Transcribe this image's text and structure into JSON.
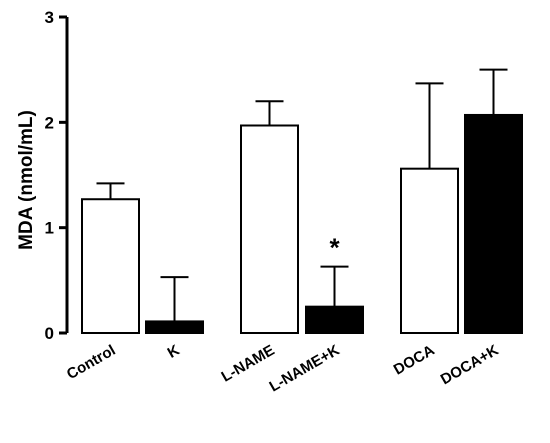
{
  "chart_data": {
    "type": "bar",
    "title": "",
    "xlabel": "",
    "ylabel": "MDA (nmol/mL)",
    "ylim": [
      0,
      3
    ],
    "yticks": [
      0,
      1,
      2,
      3
    ],
    "grid": false,
    "categories": [
      "Control",
      "K",
      "L-NAME",
      "L-NAME+K",
      "DOCA",
      "DOCA+K"
    ],
    "values": [
      1.27,
      0.11,
      1.97,
      0.25,
      1.56,
      2.07
    ],
    "error_upper": [
      0.15,
      0.42,
      0.23,
      0.38,
      0.81,
      0.43
    ],
    "fills": [
      "#ffffff",
      "#000000",
      "#ffffff",
      "#000000",
      "#ffffff",
      "#000000"
    ],
    "annotations": [
      {
        "category": "L-NAME+K",
        "text": "*"
      }
    ]
  }
}
